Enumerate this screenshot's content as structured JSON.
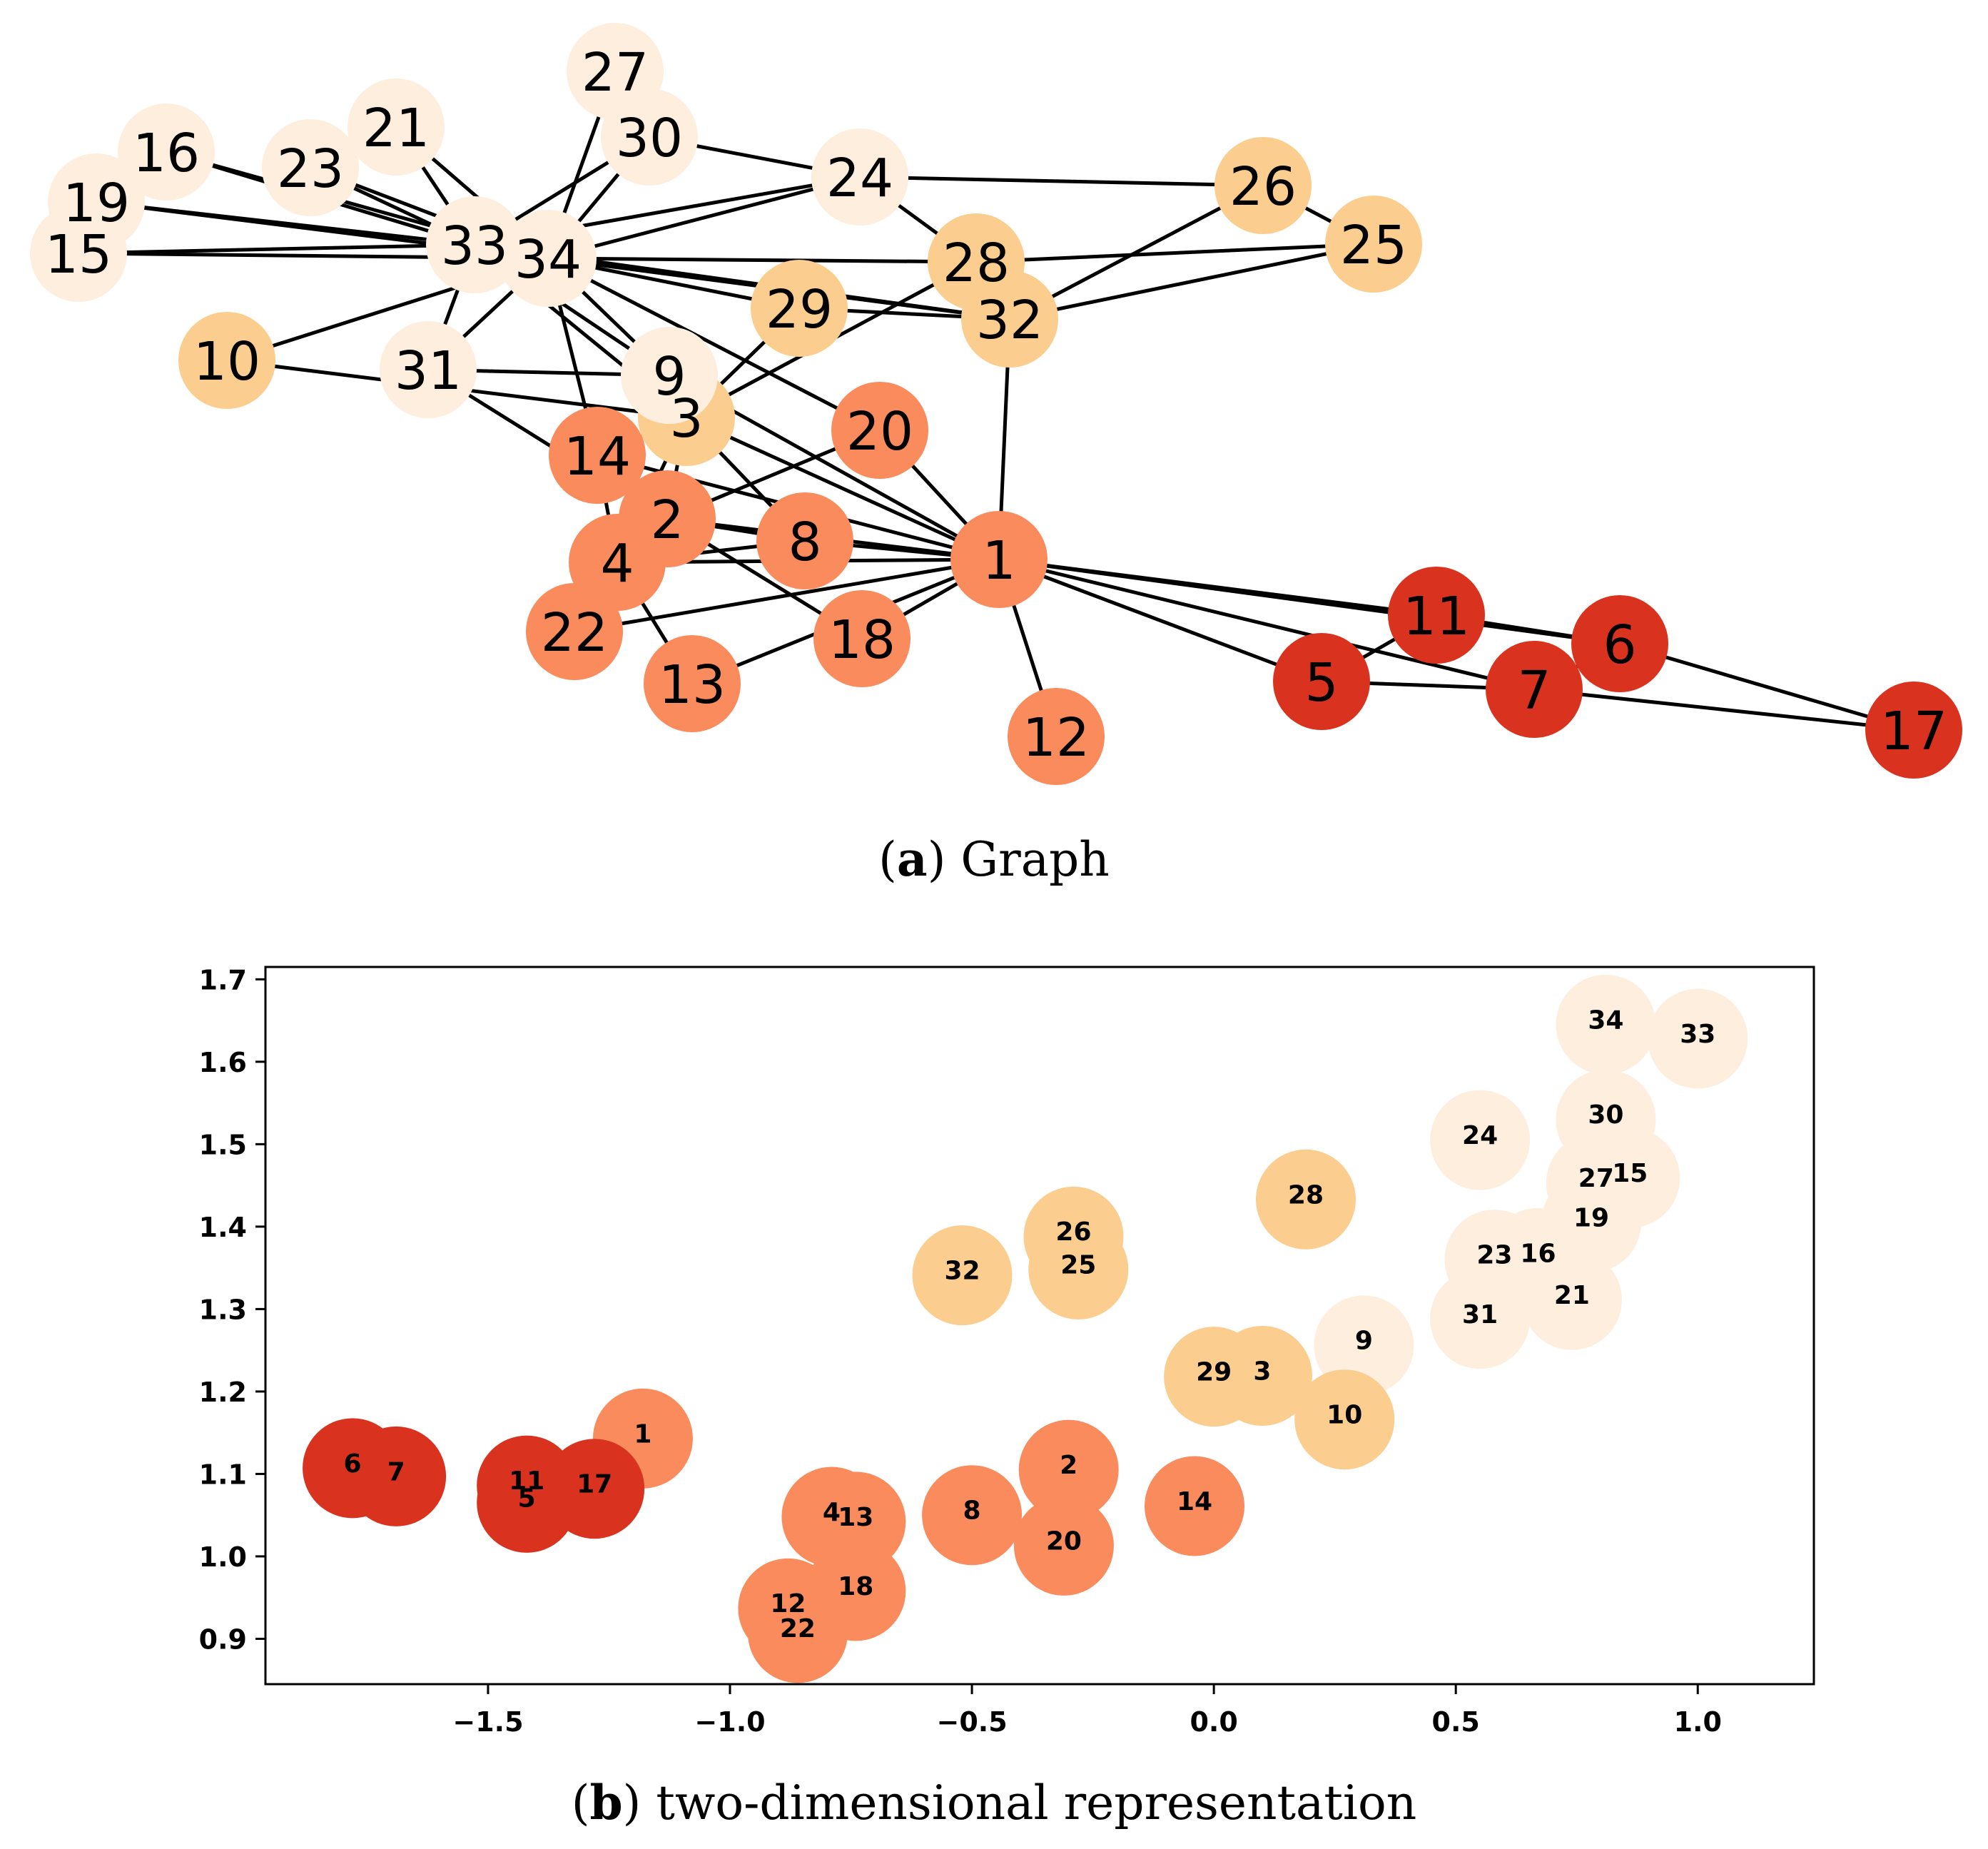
{
  "colors": {
    "light": "#fdeede",
    "tan": "#fbcd8f",
    "orange": "#f98b5c",
    "red": "#d9331f"
  },
  "chart_data": [
    {
      "type": "network",
      "title": "Graph",
      "caption": {
        "label": "a",
        "text": "Graph"
      },
      "nodes": [
        {
          "id": "1",
          "group": "orange"
        },
        {
          "id": "2",
          "group": "orange"
        },
        {
          "id": "3",
          "group": "tan"
        },
        {
          "id": "4",
          "group": "orange"
        },
        {
          "id": "5",
          "group": "red"
        },
        {
          "id": "6",
          "group": "red"
        },
        {
          "id": "7",
          "group": "red"
        },
        {
          "id": "8",
          "group": "orange"
        },
        {
          "id": "9",
          "group": "light"
        },
        {
          "id": "10",
          "group": "tan"
        },
        {
          "id": "11",
          "group": "red"
        },
        {
          "id": "12",
          "group": "orange"
        },
        {
          "id": "13",
          "group": "orange"
        },
        {
          "id": "14",
          "group": "orange"
        },
        {
          "id": "15",
          "group": "light"
        },
        {
          "id": "16",
          "group": "light"
        },
        {
          "id": "17",
          "group": "red"
        },
        {
          "id": "18",
          "group": "orange"
        },
        {
          "id": "19",
          "group": "light"
        },
        {
          "id": "20",
          "group": "orange"
        },
        {
          "id": "21",
          "group": "light"
        },
        {
          "id": "22",
          "group": "orange"
        },
        {
          "id": "23",
          "group": "light"
        },
        {
          "id": "24",
          "group": "light"
        },
        {
          "id": "25",
          "group": "tan"
        },
        {
          "id": "26",
          "group": "tan"
        },
        {
          "id": "27",
          "group": "light"
        },
        {
          "id": "28",
          "group": "tan"
        },
        {
          "id": "29",
          "group": "tan"
        },
        {
          "id": "30",
          "group": "light"
        },
        {
          "id": "31",
          "group": "light"
        },
        {
          "id": "32",
          "group": "tan"
        },
        {
          "id": "33",
          "group": "light"
        },
        {
          "id": "34",
          "group": "light"
        }
      ],
      "edges": [
        [
          "1",
          "2"
        ],
        [
          "1",
          "3"
        ],
        [
          "1",
          "4"
        ],
        [
          "1",
          "5"
        ],
        [
          "1",
          "6"
        ],
        [
          "1",
          "7"
        ],
        [
          "1",
          "8"
        ],
        [
          "1",
          "9"
        ],
        [
          "1",
          "11"
        ],
        [
          "1",
          "12"
        ],
        [
          "1",
          "13"
        ],
        [
          "1",
          "14"
        ],
        [
          "1",
          "18"
        ],
        [
          "1",
          "20"
        ],
        [
          "1",
          "22"
        ],
        [
          "1",
          "32"
        ],
        [
          "2",
          "3"
        ],
        [
          "2",
          "4"
        ],
        [
          "2",
          "8"
        ],
        [
          "2",
          "14"
        ],
        [
          "2",
          "18"
        ],
        [
          "2",
          "20"
        ],
        [
          "2",
          "22"
        ],
        [
          "2",
          "31"
        ],
        [
          "3",
          "4"
        ],
        [
          "3",
          "8"
        ],
        [
          "3",
          "9"
        ],
        [
          "3",
          "10"
        ],
        [
          "3",
          "14"
        ],
        [
          "3",
          "28"
        ],
        [
          "3",
          "29"
        ],
        [
          "3",
          "33"
        ],
        [
          "4",
          "8"
        ],
        [
          "4",
          "13"
        ],
        [
          "4",
          "14"
        ],
        [
          "5",
          "7"
        ],
        [
          "5",
          "11"
        ],
        [
          "6",
          "7"
        ],
        [
          "6",
          "11"
        ],
        [
          "6",
          "17"
        ],
        [
          "7",
          "17"
        ],
        [
          "9",
          "31"
        ],
        [
          "9",
          "33"
        ],
        [
          "9",
          "34"
        ],
        [
          "10",
          "34"
        ],
        [
          "14",
          "34"
        ],
        [
          "15",
          "33"
        ],
        [
          "15",
          "34"
        ],
        [
          "16",
          "33"
        ],
        [
          "16",
          "34"
        ],
        [
          "19",
          "33"
        ],
        [
          "19",
          "34"
        ],
        [
          "20",
          "34"
        ],
        [
          "21",
          "33"
        ],
        [
          "21",
          "34"
        ],
        [
          "23",
          "33"
        ],
        [
          "23",
          "34"
        ],
        [
          "24",
          "26"
        ],
        [
          "24",
          "28"
        ],
        [
          "24",
          "30"
        ],
        [
          "24",
          "33"
        ],
        [
          "24",
          "34"
        ],
        [
          "25",
          "26"
        ],
        [
          "25",
          "28"
        ],
        [
          "25",
          "32"
        ],
        [
          "26",
          "32"
        ],
        [
          "27",
          "30"
        ],
        [
          "27",
          "34"
        ],
        [
          "28",
          "34"
        ],
        [
          "29",
          "32"
        ],
        [
          "29",
          "34"
        ],
        [
          "30",
          "33"
        ],
        [
          "30",
          "34"
        ],
        [
          "31",
          "33"
        ],
        [
          "31",
          "34"
        ],
        [
          "32",
          "33"
        ],
        [
          "32",
          "34"
        ],
        [
          "33",
          "34"
        ]
      ]
    },
    {
      "type": "scatter",
      "title": "two-dimensional representation",
      "caption": {
        "label": "b",
        "text": "two-dimensional representation"
      },
      "xlim": [
        -1.96,
        1.24
      ],
      "ylim": [
        0.845,
        1.715
      ],
      "xticks": [
        -1.5,
        -1.0,
        -0.5,
        0.0,
        0.5,
        1.0
      ],
      "xtick_labels": [
        "−1.5",
        "−1.0",
        "−0.5",
        "0.0",
        "0.5",
        "1.0"
      ],
      "yticks": [
        0.9,
        1.0,
        1.1,
        1.2,
        1.3,
        1.4,
        1.5,
        1.6,
        1.7
      ],
      "ytick_labels": [
        "0.9",
        "1.0",
        "1.1",
        "1.2",
        "1.3",
        "1.4",
        "1.5",
        "1.6",
        "1.7"
      ],
      "points": [
        {
          "label": "1",
          "x": -1.18,
          "y": 1.143,
          "group": "orange"
        },
        {
          "label": "2",
          "x": -0.3,
          "y": 1.105,
          "group": "orange"
        },
        {
          "label": "3",
          "x": 0.1,
          "y": 1.219,
          "group": "tan"
        },
        {
          "label": "4",
          "x": -0.79,
          "y": 1.048,
          "group": "orange"
        },
        {
          "label": "5",
          "x": -1.42,
          "y": 1.065,
          "group": "red"
        },
        {
          "label": "6",
          "x": -1.78,
          "y": 1.107,
          "group": "red"
        },
        {
          "label": "7",
          "x": -1.69,
          "y": 1.097,
          "group": "red"
        },
        {
          "label": "8",
          "x": -0.5,
          "y": 1.05,
          "group": "orange"
        },
        {
          "label": "9",
          "x": 0.31,
          "y": 1.256,
          "group": "light"
        },
        {
          "label": "10",
          "x": 0.27,
          "y": 1.166,
          "group": "tan"
        },
        {
          "label": "11",
          "x": -1.42,
          "y": 1.086,
          "group": "red"
        },
        {
          "label": "12",
          "x": -0.88,
          "y": 0.937,
          "group": "orange"
        },
        {
          "label": "13",
          "x": -0.74,
          "y": 1.042,
          "group": "orange"
        },
        {
          "label": "14",
          "x": -0.04,
          "y": 1.061,
          "group": "orange"
        },
        {
          "label": "15",
          "x": 0.86,
          "y": 1.459,
          "group": "light"
        },
        {
          "label": "16",
          "x": 0.67,
          "y": 1.362,
          "group": "light"
        },
        {
          "label": "17",
          "x": -1.28,
          "y": 1.082,
          "group": "red"
        },
        {
          "label": "18",
          "x": -0.74,
          "y": 0.958,
          "group": "orange"
        },
        {
          "label": "19",
          "x": 0.78,
          "y": 1.405,
          "group": "light"
        },
        {
          "label": "20",
          "x": -0.31,
          "y": 1.013,
          "group": "orange"
        },
        {
          "label": "21",
          "x": 0.74,
          "y": 1.311,
          "group": "light"
        },
        {
          "label": "22",
          "x": -0.86,
          "y": 0.907,
          "group": "orange"
        },
        {
          "label": "23",
          "x": 0.58,
          "y": 1.36,
          "group": "light"
        },
        {
          "label": "24",
          "x": 0.55,
          "y": 1.505,
          "group": "light"
        },
        {
          "label": "25",
          "x": -0.28,
          "y": 1.348,
          "group": "tan"
        },
        {
          "label": "26",
          "x": -0.29,
          "y": 1.388,
          "group": "tan"
        },
        {
          "label": "27",
          "x": 0.79,
          "y": 1.453,
          "group": "light"
        },
        {
          "label": "28",
          "x": 0.19,
          "y": 1.433,
          "group": "tan"
        },
        {
          "label": "29",
          "x": 0.0,
          "y": 1.218,
          "group": "tan"
        },
        {
          "label": "30",
          "x": 0.81,
          "y": 1.53,
          "group": "light"
        },
        {
          "label": "31",
          "x": 0.55,
          "y": 1.288,
          "group": "light"
        },
        {
          "label": "32",
          "x": -0.52,
          "y": 1.341,
          "group": "tan"
        },
        {
          "label": "33",
          "x": 1.0,
          "y": 1.628,
          "group": "light"
        },
        {
          "label": "34",
          "x": 0.81,
          "y": 1.645,
          "group": "light"
        }
      ]
    }
  ]
}
